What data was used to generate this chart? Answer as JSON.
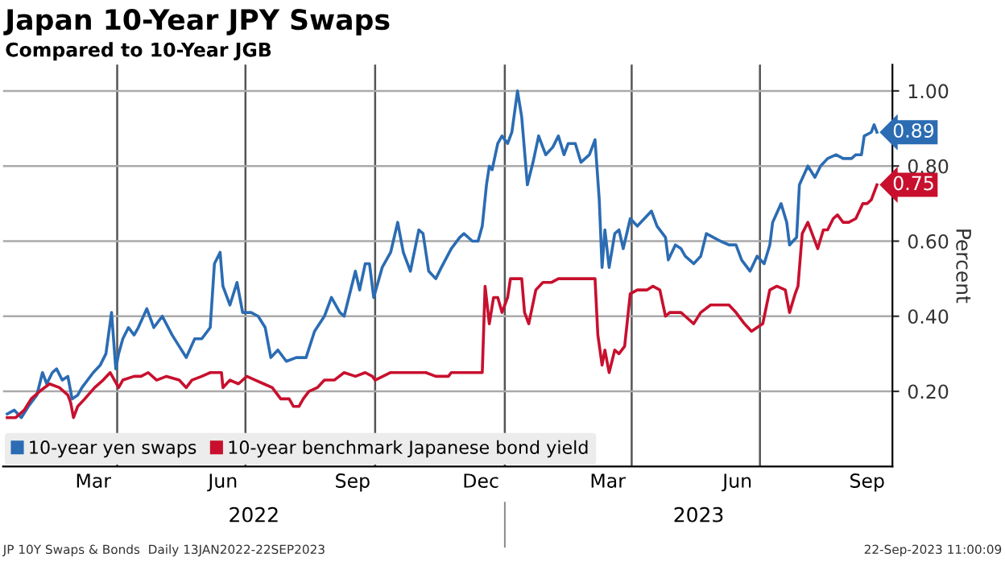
{
  "chart_data": {
    "type": "line",
    "title": "Japan 10-Year JPY Swaps",
    "subtitle": "Compared to 10-Year JGB",
    "ylabel": "Percent",
    "xlim": [
      "2022-01-10",
      "2023-10-03"
    ],
    "ylim": [
      0.0,
      1.07
    ],
    "yticks": [
      {
        "value": 0.2,
        "label": "0.20"
      },
      {
        "value": 0.4,
        "label": "0.40"
      },
      {
        "value": 0.6,
        "label": "0.60"
      },
      {
        "value": 0.8,
        "label": "0.80"
      },
      {
        "value": 1.0,
        "label": "1.00"
      }
    ],
    "xticks": [
      {
        "value": "2022-03-15",
        "label": "Mar"
      },
      {
        "value": "2022-04-01",
        "label": null
      },
      {
        "value": "2022-06-15",
        "label": "Jun"
      },
      {
        "value": "2022-07-01",
        "label": null
      },
      {
        "value": "2022-09-15",
        "label": "Sep"
      },
      {
        "value": "2022-10-01",
        "label": null
      },
      {
        "value": "2022-12-15",
        "label": "Dec"
      },
      {
        "value": "2023-01-01",
        "label": null
      },
      {
        "value": "2023-03-15",
        "label": "Mar"
      },
      {
        "value": "2023-04-01",
        "label": null
      },
      {
        "value": "2023-06-15",
        "label": "Jun"
      },
      {
        "value": "2023-07-01",
        "label": null
      },
      {
        "value": "2023-09-15",
        "label": "Sep"
      }
    ],
    "grid": true,
    "legend": "bottom left",
    "line_style": "solid",
    "series": [
      {
        "name": "10-year yen swaps",
        "color": "#2b6cb3",
        "x": [
          "2022-01-13",
          "2022-01-18",
          "2022-01-23",
          "2022-01-28",
          "2022-02-03",
          "2022-02-07",
          "2022-02-10",
          "2022-02-14",
          "2022-02-17",
          "2022-02-21",
          "2022-02-25",
          "2022-02-28",
          "2022-03-04",
          "2022-03-07",
          "2022-03-15",
          "2022-03-20",
          "2022-03-24",
          "2022-03-28",
          "2022-03-31",
          "2022-04-02",
          "2022-04-05",
          "2022-04-09",
          "2022-04-13",
          "2022-04-16",
          "2022-04-22",
          "2022-04-27",
          "2022-05-03",
          "2022-05-10",
          "2022-05-15",
          "2022-05-20",
          "2022-05-26",
          "2022-05-31",
          "2022-06-06",
          "2022-06-09",
          "2022-06-13",
          "2022-06-15",
          "2022-06-20",
          "2022-06-25",
          "2022-06-29",
          "2022-07-05",
          "2022-07-10",
          "2022-07-15",
          "2022-07-19",
          "2022-07-24",
          "2022-07-30",
          "2022-08-06",
          "2022-08-13",
          "2022-08-19",
          "2022-08-26",
          "2022-08-31",
          "2022-09-06",
          "2022-09-09",
          "2022-09-17",
          "2022-09-20",
          "2022-09-24",
          "2022-09-27",
          "2022-09-30",
          "2022-10-06",
          "2022-10-12",
          "2022-10-17",
          "2022-10-21",
          "2022-10-26",
          "2022-11-01",
          "2022-11-04",
          "2022-11-08",
          "2022-11-13",
          "2022-11-17",
          "2022-11-24",
          "2022-11-30",
          "2022-12-03",
          "2022-12-09",
          "2022-12-13",
          "2022-12-16",
          "2022-12-19",
          "2022-12-21",
          "2022-12-23",
          "2022-12-27",
          "2022-12-30",
          "2023-01-03",
          "2023-01-06",
          "2023-01-10",
          "2023-01-13",
          "2023-01-17",
          "2023-01-21",
          "2023-01-25",
          "2023-01-30",
          "2023-02-04",
          "2023-02-08",
          "2023-02-12",
          "2023-02-15",
          "2023-02-20",
          "2023-02-24",
          "2023-03-02",
          "2023-03-06",
          "2023-03-09",
          "2023-03-11",
          "2023-03-13",
          "2023-03-16",
          "2023-03-20",
          "2023-03-23",
          "2023-03-26",
          "2023-03-31",
          "2023-04-05",
          "2023-04-10",
          "2023-04-15",
          "2023-04-19",
          "2023-04-25",
          "2023-04-27",
          "2023-05-02",
          "2023-05-06",
          "2023-05-09",
          "2023-05-15",
          "2023-05-20",
          "2023-05-24",
          "2023-05-29",
          "2023-06-03",
          "2023-06-09",
          "2023-06-14",
          "2023-06-18",
          "2023-06-24",
          "2023-06-29",
          "2023-07-04",
          "2023-07-08",
          "2023-07-10",
          "2023-07-16",
          "2023-07-20",
          "2023-07-22",
          "2023-07-27",
          "2023-07-29",
          "2023-08-04",
          "2023-08-09",
          "2023-08-13",
          "2023-08-18",
          "2023-08-24",
          "2023-08-29",
          "2023-09-04",
          "2023-09-07",
          "2023-09-11",
          "2023-09-13",
          "2023-09-18",
          "2023-09-20",
          "2023-09-22"
        ],
        "values": [
          0.14,
          0.15,
          0.13,
          0.16,
          0.19,
          0.25,
          0.22,
          0.25,
          0.26,
          0.23,
          0.24,
          0.18,
          0.19,
          0.21,
          0.25,
          0.27,
          0.3,
          0.41,
          0.26,
          0.3,
          0.34,
          0.37,
          0.35,
          0.37,
          0.42,
          0.37,
          0.4,
          0.35,
          0.32,
          0.29,
          0.34,
          0.34,
          0.37,
          0.54,
          0.57,
          0.48,
          0.43,
          0.49,
          0.41,
          0.41,
          0.4,
          0.37,
          0.29,
          0.31,
          0.28,
          0.29,
          0.29,
          0.36,
          0.4,
          0.45,
          0.41,
          0.4,
          0.52,
          0.47,
          0.54,
          0.54,
          0.45,
          0.53,
          0.57,
          0.65,
          0.57,
          0.52,
          0.63,
          0.62,
          0.52,
          0.5,
          0.53,
          0.58,
          0.61,
          0.62,
          0.6,
          0.6,
          0.64,
          0.75,
          0.8,
          0.79,
          0.86,
          0.88,
          0.86,
          0.89,
          1.0,
          0.93,
          0.75,
          0.81,
          0.88,
          0.83,
          0.85,
          0.88,
          0.83,
          0.86,
          0.86,
          0.81,
          0.83,
          0.87,
          0.71,
          0.53,
          0.63,
          0.53,
          0.62,
          0.63,
          0.58,
          0.66,
          0.64,
          0.66,
          0.68,
          0.64,
          0.61,
          0.55,
          0.59,
          0.58,
          0.56,
          0.54,
          0.56,
          0.62,
          0.61,
          0.6,
          0.59,
          0.59,
          0.55,
          0.52,
          0.56,
          0.54,
          0.59,
          0.65,
          0.7,
          0.65,
          0.59,
          0.61,
          0.75,
          0.8,
          0.77,
          0.8,
          0.82,
          0.83,
          0.82,
          0.82,
          0.83,
          0.83,
          0.88,
          0.89,
          0.91,
          0.89
        ]
      },
      {
        "name": "10-year benchmark Japanese bond yield",
        "color": "#c8102e",
        "x": [
          "2022-01-13",
          "2022-01-19",
          "2022-01-25",
          "2022-01-30",
          "2022-02-05",
          "2022-02-12",
          "2022-02-19",
          "2022-02-25",
          "2022-02-27",
          "2022-03-01",
          "2022-03-04",
          "2022-03-09",
          "2022-03-16",
          "2022-03-22",
          "2022-03-27",
          "2022-04-02",
          "2022-04-05",
          "2022-04-13",
          "2022-04-18",
          "2022-04-23",
          "2022-04-29",
          "2022-05-06",
          "2022-05-15",
          "2022-05-20",
          "2022-05-24",
          "2022-05-31",
          "2022-06-06",
          "2022-06-11",
          "2022-06-14",
          "2022-06-15",
          "2022-06-20",
          "2022-06-26",
          "2022-07-02",
          "2022-07-08",
          "2022-07-14",
          "2022-07-20",
          "2022-07-26",
          "2022-08-01",
          "2022-08-04",
          "2022-08-08",
          "2022-08-11",
          "2022-08-15",
          "2022-08-21",
          "2022-08-26",
          "2022-09-02",
          "2022-09-09",
          "2022-09-17",
          "2022-09-24",
          "2022-09-29",
          "2022-10-01",
          "2022-10-12",
          "2022-10-26",
          "2022-11-06",
          "2022-11-13",
          "2022-11-22",
          "2022-11-24",
          "2022-12-12",
          "2022-12-16",
          "2022-12-18",
          "2022-12-21",
          "2022-12-24",
          "2022-12-27",
          "2022-12-30",
          "2023-01-03",
          "2023-01-05",
          "2023-01-13",
          "2023-01-15",
          "2023-01-18",
          "2023-01-23",
          "2023-01-28",
          "2023-02-03",
          "2023-02-08",
          "2023-03-06",
          "2023-03-08",
          "2023-03-11",
          "2023-03-13",
          "2023-03-16",
          "2023-03-20",
          "2023-03-23",
          "2023-03-27",
          "2023-03-31",
          "2023-04-05",
          "2023-04-12",
          "2023-04-16",
          "2023-04-21",
          "2023-04-25",
          "2023-04-28",
          "2023-05-06",
          "2023-05-09",
          "2023-05-15",
          "2023-05-20",
          "2023-05-27",
          "2023-06-03",
          "2023-06-09",
          "2023-06-14",
          "2023-06-20",
          "2023-06-25",
          "2023-06-29",
          "2023-07-03",
          "2023-07-08",
          "2023-07-13",
          "2023-07-19",
          "2023-07-22",
          "2023-07-26",
          "2023-07-28",
          "2023-07-31",
          "2023-08-04",
          "2023-08-07",
          "2023-08-11",
          "2023-08-15",
          "2023-08-18",
          "2023-08-22",
          "2023-08-25",
          "2023-08-29",
          "2023-09-02",
          "2023-09-07",
          "2023-09-12",
          "2023-09-15",
          "2023-09-18",
          "2023-09-22"
        ],
        "values": [
          0.13,
          0.13,
          0.15,
          0.18,
          0.2,
          0.22,
          0.21,
          0.19,
          0.17,
          0.13,
          0.16,
          0.18,
          0.21,
          0.23,
          0.25,
          0.21,
          0.23,
          0.24,
          0.24,
          0.25,
          0.23,
          0.24,
          0.23,
          0.21,
          0.23,
          0.24,
          0.25,
          0.25,
          0.25,
          0.21,
          0.23,
          0.22,
          0.24,
          0.23,
          0.22,
          0.21,
          0.18,
          0.18,
          0.16,
          0.16,
          0.18,
          0.2,
          0.21,
          0.23,
          0.23,
          0.25,
          0.24,
          0.25,
          0.24,
          0.23,
          0.25,
          0.25,
          0.25,
          0.24,
          0.24,
          0.25,
          0.25,
          0.25,
          0.48,
          0.38,
          0.45,
          0.45,
          0.41,
          0.45,
          0.5,
          0.5,
          0.41,
          0.38,
          0.47,
          0.49,
          0.49,
          0.5,
          0.5,
          0.35,
          0.27,
          0.31,
          0.25,
          0.31,
          0.3,
          0.32,
          0.46,
          0.47,
          0.47,
          0.48,
          0.47,
          0.4,
          0.41,
          0.41,
          0.4,
          0.38,
          0.41,
          0.43,
          0.43,
          0.43,
          0.41,
          0.38,
          0.36,
          0.37,
          0.38,
          0.47,
          0.48,
          0.47,
          0.41,
          0.46,
          0.48,
          0.62,
          0.65,
          0.62,
          0.58,
          0.63,
          0.63,
          0.66,
          0.67,
          0.65,
          0.65,
          0.66,
          0.7,
          0.7,
          0.71,
          0.75
        ]
      }
    ],
    "annotations": [
      {
        "text": "0.89",
        "x": "2023-09-22",
        "y": 0.89
      },
      {
        "text": "0.75",
        "x": "2023-09-22",
        "y": 0.75
      },
      "2022",
      "2023",
      "JP 10Y Swaps & Bonds  Daily 13JAN2022-22SEP2023",
      "22-Sep-2023 11:00:09"
    ]
  }
}
